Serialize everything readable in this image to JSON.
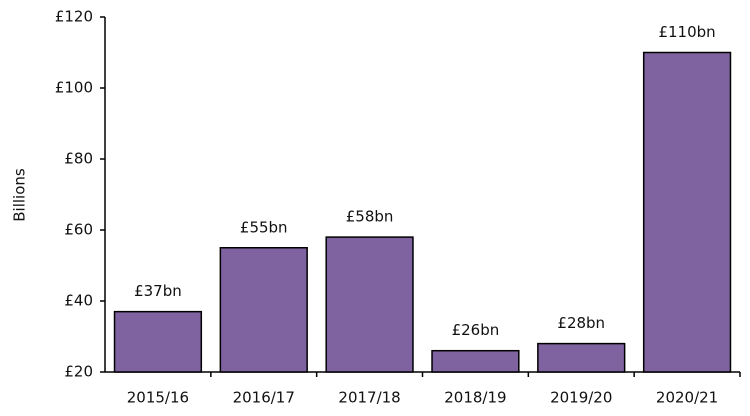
{
  "chart_data": {
    "type": "bar",
    "y_label": "Billions",
    "categories": [
      "2015/16",
      "2016/17",
      "2017/18",
      "2018/19",
      "2019/20",
      "2020/21"
    ],
    "values": [
      37,
      55,
      58,
      26,
      28,
      110
    ],
    "value_labels": [
      "£37bn",
      "£55bn",
      "£58bn",
      "£26bn",
      "£28bn",
      "£110bn"
    ],
    "color": "#7f63a1",
    "ylim": [
      20,
      120
    ],
    "yticks": [
      {
        "value": 20,
        "label": "£20"
      },
      {
        "value": 40,
        "label": "£40"
      },
      {
        "value": 60,
        "label": "£60"
      },
      {
        "value": 80,
        "label": "£80"
      },
      {
        "value": 100,
        "label": "£100"
      },
      {
        "value": 120,
        "label": "£120"
      }
    ],
    "grid": false
  }
}
